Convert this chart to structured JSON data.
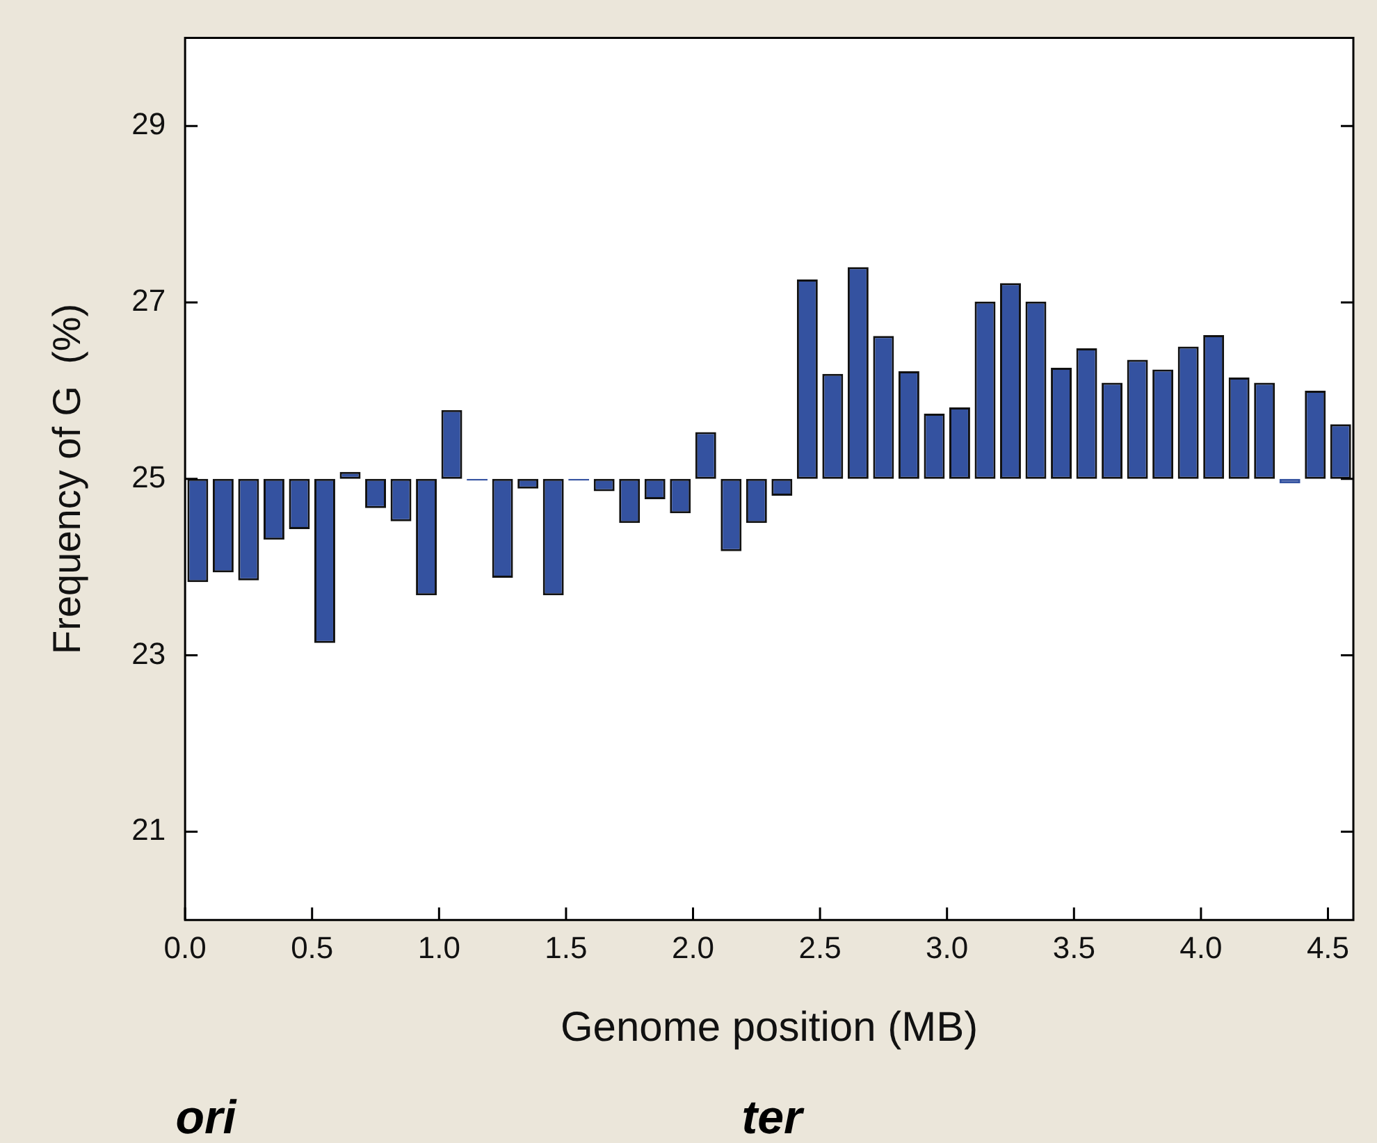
{
  "chart_data": {
    "type": "bar",
    "xlabel": "Genome position (MB)",
    "ylabel": "Frequency of G  (%)",
    "x": [
      0.05,
      0.15,
      0.25,
      0.35,
      0.45,
      0.55,
      0.65,
      0.75,
      0.85,
      0.95,
      1.05,
      1.15,
      1.25,
      1.35,
      1.45,
      1.55,
      1.65,
      1.75,
      1.85,
      1.95,
      2.05,
      2.15,
      2.25,
      2.35,
      2.45,
      2.55,
      2.65,
      2.75,
      2.85,
      2.95,
      3.05,
      3.15,
      3.25,
      3.35,
      3.45,
      3.55,
      3.65,
      3.75,
      3.85,
      3.95,
      4.05,
      4.15,
      4.25,
      4.35,
      4.45,
      4.55
    ],
    "base": [
      25,
      25,
      25,
      25,
      25,
      25,
      25,
      25,
      25,
      25,
      25,
      25,
      25,
      25,
      25,
      25,
      25,
      25,
      25,
      25,
      25,
      25,
      25,
      25,
      25,
      25,
      25,
      25,
      25,
      25,
      25,
      25,
      25,
      25,
      25,
      25,
      25,
      25,
      25,
      25,
      25,
      25,
      25,
      25,
      25,
      25
    ],
    "values": [
      -1.17,
      -1.06,
      -1.15,
      -0.69,
      -0.57,
      -1.86,
      0.08,
      -0.33,
      -0.48,
      -1.32,
      0.78,
      -0.02,
      -1.12,
      -0.11,
      -1.32,
      -0.02,
      -0.14,
      -0.5,
      -0.23,
      -0.39,
      0.53,
      -0.82,
      -0.5,
      -0.19,
      2.26,
      1.19,
      2.4,
      1.62,
      1.22,
      0.74,
      0.81,
      2.01,
      2.22,
      2.01,
      1.26,
      1.48,
      1.09,
      1.35,
      1.24,
      1.5,
      1.63,
      1.15,
      1.09,
      -0.05,
      1.0,
      0.62
    ],
    "color": "#3452a0",
    "xlim": [
      0,
      4.6
    ],
    "xticks": [
      {
        "value": 0,
        "label": "0.0"
      },
      {
        "value": 0.5,
        "label": "0.5"
      },
      {
        "value": 1,
        "label": "1.0"
      },
      {
        "value": 1.5,
        "label": "1.5"
      },
      {
        "value": 2,
        "label": "2.0"
      },
      {
        "value": 2.5,
        "label": "2.5"
      },
      {
        "value": 3,
        "label": "3.0"
      },
      {
        "value": 3.5,
        "label": "3.5"
      },
      {
        "value": 4,
        "label": "4.0"
      },
      {
        "value": 4.5,
        "label": "4.5"
      }
    ],
    "ylim": [
      20,
      30
    ],
    "yticks": [
      21,
      23,
      25,
      27,
      29
    ],
    "annotations": [
      "ori",
      "ter"
    ]
  }
}
